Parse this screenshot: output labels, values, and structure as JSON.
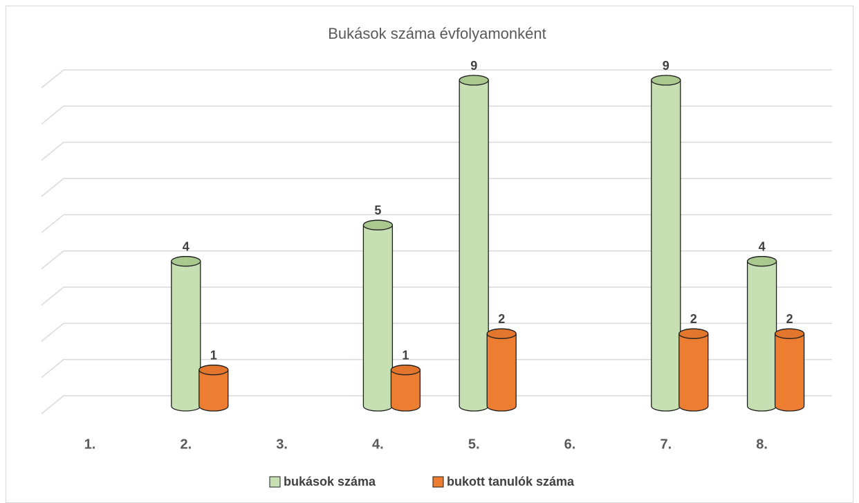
{
  "chart_data": {
    "type": "bar3d",
    "title": "Bukások száma évfolyamonként",
    "categories": [
      "1.",
      "2.",
      "3.",
      "4.",
      "5.",
      "6.",
      "7.",
      "8."
    ],
    "series": [
      {
        "name": "bukások száma",
        "color": "#c6e0b4",
        "values": [
          null,
          4,
          null,
          5,
          9,
          null,
          9,
          4
        ]
      },
      {
        "name": "bukott tanulók száma",
        "color": "#ed7d31",
        "values": [
          null,
          1,
          null,
          1,
          2,
          null,
          2,
          2
        ]
      }
    ],
    "ylim": [
      0,
      9
    ],
    "yticks": [
      0,
      1,
      2,
      3,
      4,
      5,
      6,
      7,
      8,
      9
    ],
    "grid": true,
    "legend": "bottom"
  }
}
